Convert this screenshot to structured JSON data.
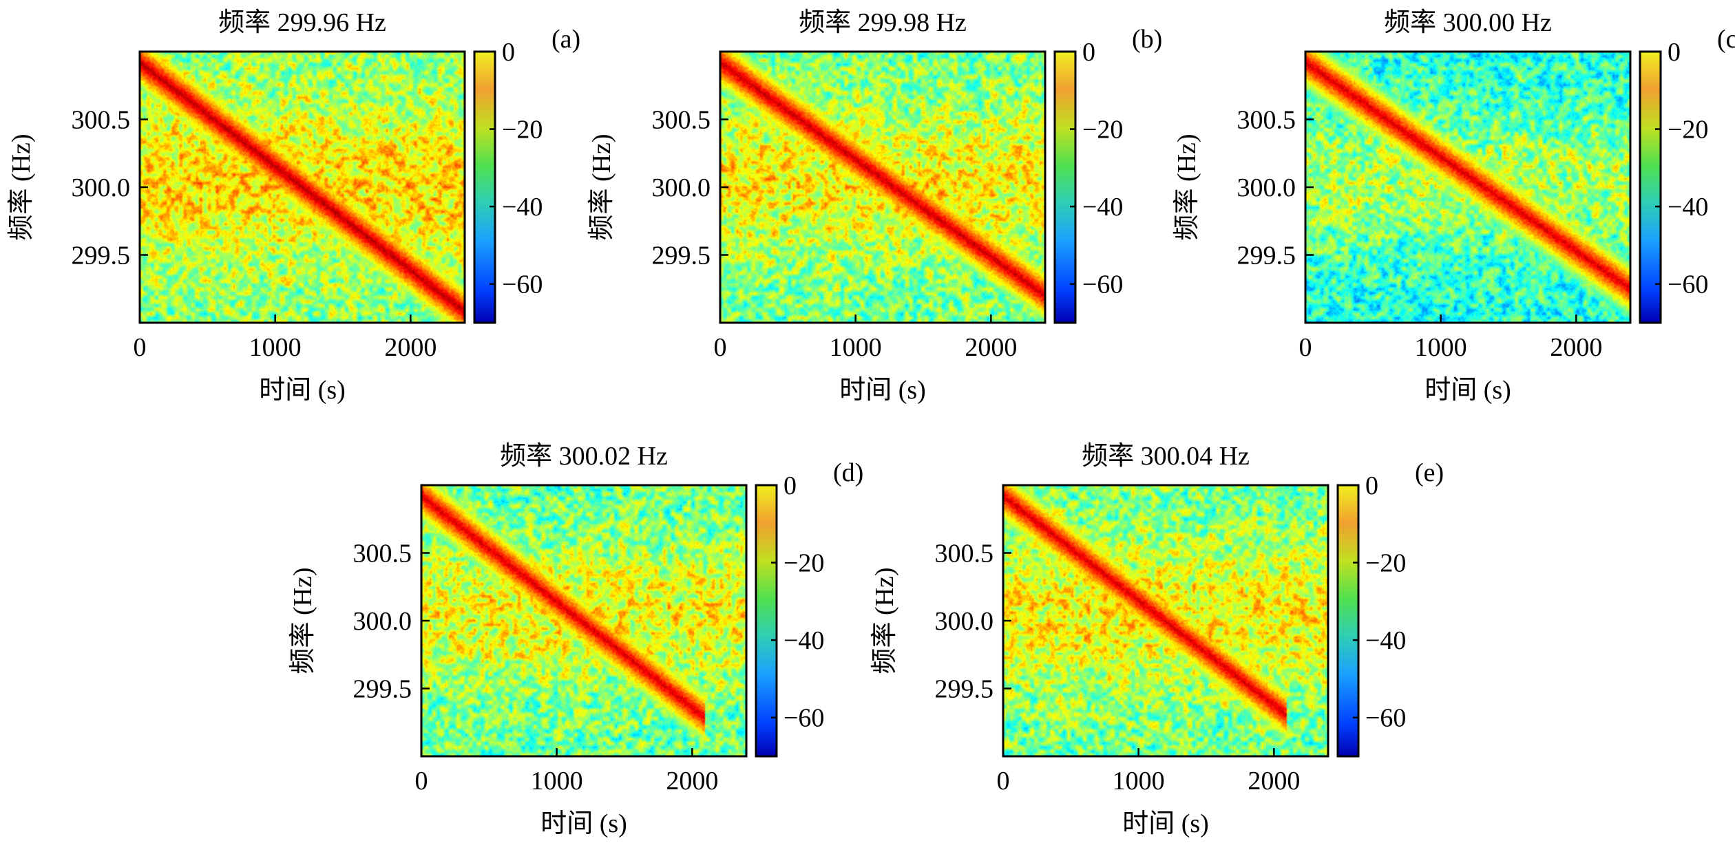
{
  "colormap": "jet",
  "chart_data": [
    {
      "type": "heatmap",
      "panel_label": "(a)",
      "title": "频率 299.96 Hz",
      "xlabel": "时间 (s)",
      "ylabel": "频率 (Hz)",
      "xlim": [
        0,
        2400
      ],
      "ylim": [
        299.0,
        301.0
      ],
      "xticks": [
        0,
        1000,
        2000
      ],
      "xtick_labels": [
        "0",
        "1000",
        "2000"
      ],
      "yticks": [
        299.5,
        300.0,
        300.5
      ],
      "ytick_labels": [
        "299.5",
        "300.0",
        "300.5"
      ],
      "colorbar": {
        "range": [
          -70,
          0
        ],
        "ticks": [
          0,
          -20,
          -40,
          -60
        ],
        "tick_labels": [
          "0",
          "−20",
          "−40",
          "−60"
        ]
      },
      "noise_level_db": -20,
      "signal_track": {
        "start": [
          0,
          300.92
        ],
        "end": [
          2400,
          299.08
        ],
        "peak_db": -4
      }
    },
    {
      "type": "heatmap",
      "panel_label": "(b)",
      "title": "频率 299.98 Hz",
      "xlabel": "时间 (s)",
      "ylabel": "频率 (Hz)",
      "xlim": [
        0,
        2400
      ],
      "ylim": [
        299.0,
        301.0
      ],
      "xticks": [
        0,
        1000,
        2000
      ],
      "xtick_labels": [
        "0",
        "1000",
        "2000"
      ],
      "yticks": [
        299.5,
        300.0,
        300.5
      ],
      "ytick_labels": [
        "299.5",
        "300.0",
        "300.5"
      ],
      "colorbar": {
        "range": [
          -70,
          0
        ],
        "ticks": [
          0,
          -20,
          -40,
          -60
        ],
        "tick_labels": [
          "0",
          "−20",
          "−40",
          "−60"
        ]
      },
      "noise_level_db": -22,
      "signal_track": {
        "start": [
          0,
          300.92
        ],
        "end": [
          2400,
          299.2
        ],
        "peak_db": -5
      }
    },
    {
      "type": "heatmap",
      "panel_label": "(c)",
      "title": "频率 300.00 Hz",
      "xlabel": "时间 (s)",
      "ylabel": "频率 (Hz)",
      "xlim": [
        0,
        2400
      ],
      "ylim": [
        299.0,
        301.0
      ],
      "xticks": [
        0,
        1000,
        2000
      ],
      "xtick_labels": [
        "0",
        "1000",
        "2000"
      ],
      "yticks": [
        299.5,
        300.0,
        300.5
      ],
      "ytick_labels": [
        "299.5",
        "300.0",
        "300.5"
      ],
      "colorbar": {
        "range": [
          -70,
          0
        ],
        "ticks": [
          0,
          -20,
          -40,
          -60
        ],
        "tick_labels": [
          "0",
          "−20",
          "−40",
          "−60"
        ]
      },
      "noise_level_db": -28,
      "signal_track": {
        "start": [
          0,
          300.92
        ],
        "end": [
          2400,
          299.25
        ],
        "peak_db": -6
      }
    },
    {
      "type": "heatmap",
      "panel_label": "(d)",
      "title": "频率 300.02 Hz",
      "xlabel": "时间 (s)",
      "ylabel": "频率 (Hz)",
      "xlim": [
        0,
        2400
      ],
      "ylim": [
        299.0,
        301.0
      ],
      "xticks": [
        0,
        1000,
        2000
      ],
      "xtick_labels": [
        "0",
        "1000",
        "2000"
      ],
      "yticks": [
        299.5,
        300.0,
        300.5
      ],
      "ytick_labels": [
        "299.5",
        "300.0",
        "300.5"
      ],
      "colorbar": {
        "range": [
          -70,
          0
        ],
        "ticks": [
          0,
          -20,
          -40,
          -60
        ],
        "tick_labels": [
          "0",
          "−20",
          "−40",
          "−60"
        ]
      },
      "noise_level_db": -23,
      "signal_track": {
        "start": [
          0,
          300.92
        ],
        "end": [
          2100,
          299.28
        ],
        "peak_db": -6
      }
    },
    {
      "type": "heatmap",
      "panel_label": "(e)",
      "title": "频率 300.04 Hz",
      "xlabel": "时间 (s)",
      "ylabel": "频率 (Hz)",
      "xlim": [
        0,
        2400
      ],
      "ylim": [
        299.0,
        301.0
      ],
      "xticks": [
        0,
        1000,
        2000
      ],
      "xtick_labels": [
        "0",
        "1000",
        "2000"
      ],
      "yticks": [
        299.5,
        300.0,
        300.5
      ],
      "ytick_labels": [
        "299.5",
        "300.0",
        "300.5"
      ],
      "colorbar": {
        "range": [
          -70,
          0
        ],
        "ticks": [
          0,
          -20,
          -40,
          -60
        ],
        "tick_labels": [
          "0",
          "−20",
          "−40",
          "−60"
        ]
      },
      "noise_level_db": -22,
      "signal_track": {
        "start": [
          0,
          300.92
        ],
        "end": [
          2100,
          299.3
        ],
        "peak_db": -6
      }
    }
  ]
}
